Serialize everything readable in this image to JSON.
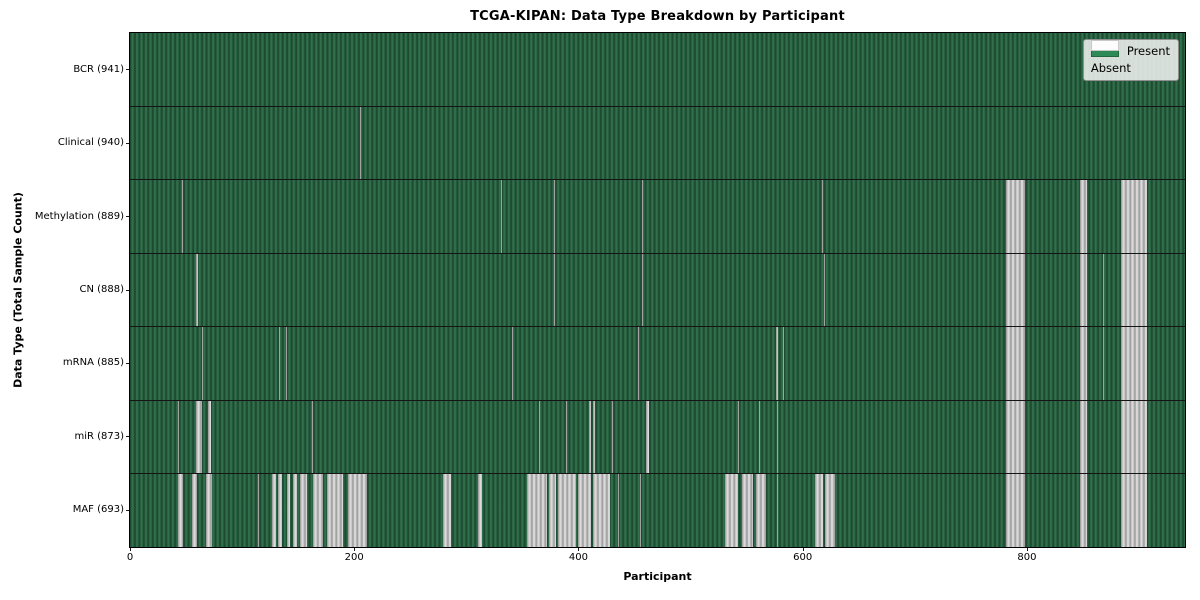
{
  "chart_data": {
    "type": "heatmap",
    "title": "TCGA-KIPAN: Data Type Breakdown by Participant",
    "xlabel": "Participant",
    "ylabel": "Data Type (Total Sample Count)",
    "x_ticks": [
      0,
      200,
      400,
      600,
      800
    ],
    "x_range": [
      0,
      941
    ],
    "n_participants": 941,
    "grid": false,
    "legend_position": "upper right",
    "legend": [
      {
        "label": "Present",
        "color": "#2e8b57"
      },
      {
        "label": "Absent",
        "color": "#ffffff"
      }
    ],
    "cell_states": {
      "present": 1,
      "absent": 0
    },
    "rows": [
      {
        "label": "BCR (941)",
        "data_type": "BCR",
        "present_count": 941,
        "absent_count": 0,
        "absent_ranges": []
      },
      {
        "label": "Clinical (940)",
        "data_type": "Clinical",
        "present_count": 940,
        "absent_count": 1,
        "absent_ranges": [
          [
            205,
            206
          ]
        ]
      },
      {
        "label": "Methylation (889)",
        "data_type": "Methylation",
        "present_count": 889,
        "absent_count": 52,
        "absent_ranges": [
          [
            46,
            47
          ],
          [
            331,
            332
          ],
          [
            378,
            379
          ],
          [
            457,
            458
          ],
          [
            617,
            618
          ],
          [
            781,
            798
          ],
          [
            847,
            854
          ],
          [
            884,
            907
          ]
        ]
      },
      {
        "label": "CN (888)",
        "data_type": "CN",
        "present_count": 888,
        "absent_count": 53,
        "absent_ranges": [
          [
            59,
            61
          ],
          [
            378,
            379
          ],
          [
            457,
            458
          ],
          [
            619,
            620
          ],
          [
            781,
            798
          ],
          [
            847,
            854
          ],
          [
            868,
            869
          ],
          [
            884,
            907
          ]
        ]
      },
      {
        "label": "mRNA (885)",
        "data_type": "mRNA",
        "present_count": 885,
        "absent_count": 56,
        "absent_ranges": [
          [
            64,
            65
          ],
          [
            133,
            134
          ],
          [
            139,
            140
          ],
          [
            341,
            342
          ],
          [
            453,
            454
          ],
          [
            576,
            578
          ],
          [
            582,
            583
          ],
          [
            781,
            798
          ],
          [
            847,
            854
          ],
          [
            868,
            869
          ],
          [
            884,
            907
          ]
        ]
      },
      {
        "label": "miR (873)",
        "data_type": "miR",
        "present_count": 873,
        "absent_count": 68,
        "absent_ranges": [
          [
            43,
            44
          ],
          [
            59,
            64
          ],
          [
            70,
            72
          ],
          [
            162,
            163
          ],
          [
            365,
            366
          ],
          [
            389,
            390
          ],
          [
            409,
            411
          ],
          [
            413,
            415
          ],
          [
            430,
            431
          ],
          [
            460,
            463
          ],
          [
            542,
            543
          ],
          [
            561,
            562
          ],
          [
            577,
            578
          ],
          [
            781,
            798
          ],
          [
            847,
            854
          ],
          [
            884,
            907
          ]
        ]
      },
      {
        "label": "MAF (693)",
        "data_type": "MAF",
        "present_count": 693,
        "absent_count": 248,
        "absent_ranges": [
          [
            43,
            47
          ],
          [
            55,
            60
          ],
          [
            68,
            73
          ],
          [
            114,
            115
          ],
          [
            127,
            130
          ],
          [
            132,
            136
          ],
          [
            140,
            143
          ],
          [
            145,
            149
          ],
          [
            152,
            158
          ],
          [
            163,
            172
          ],
          [
            176,
            190
          ],
          [
            194,
            211
          ],
          [
            279,
            286
          ],
          [
            310,
            314
          ],
          [
            354,
            372
          ],
          [
            374,
            380
          ],
          [
            382,
            398
          ],
          [
            400,
            411
          ],
          [
            413,
            428
          ],
          [
            435,
            436
          ],
          [
            455,
            456
          ],
          [
            531,
            542
          ],
          [
            546,
            556
          ],
          [
            558,
            567
          ],
          [
            577,
            578
          ],
          [
            611,
            618
          ],
          [
            620,
            629
          ],
          [
            781,
            798
          ],
          [
            847,
            854
          ],
          [
            884,
            907
          ]
        ]
      }
    ],
    "colors": {
      "present_fill": "#2e8b57",
      "present_texture_dark": "#1d4a31",
      "present_texture_mid": "#2e6c48",
      "absent_fill": "#ffffff",
      "absent_texture_dark": "#a2a2a2",
      "absent_texture_light": "#d4d4d4",
      "separator": "#141414",
      "legend_bg": "#eaeceA",
      "spine": "#000000"
    }
  }
}
